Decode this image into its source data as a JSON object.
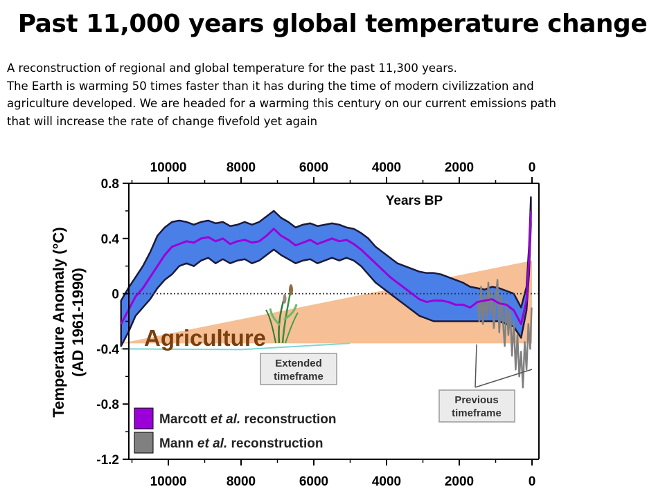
{
  "slide": {
    "title": "Past 11,000 years global temperature change",
    "body_lines": [
      "A reconstruction of regional and global temperature for the past 11,300 years.",
      "The Earth is warming 50 times faster than it has during the time of modern civilizzation and",
      "agriculture developed. We are headed for a warming this century on our current emissions path",
      "that will increase the rate of change fivefold yet again"
    ]
  },
  "chart_data": {
    "type": "line",
    "title": "",
    "ylabel": "Temperature Anomaly (°C)",
    "ylabel_sub": "(AD 1961-1990)",
    "xaxis_label": "Years BP",
    "xlim": [
      11500,
      0
    ],
    "ylim": [
      -1.2,
      0.8
    ],
    "x_ticks": [
      10000,
      8000,
      6000,
      4000,
      2000,
      0
    ],
    "x_tick_labels": [
      "10000",
      "8000",
      "6000",
      "4000",
      "2000",
      "0"
    ],
    "y_ticks": [
      0.8,
      0.4,
      0,
      -0.4,
      -0.8,
      -1.2
    ],
    "y_tick_labels": [
      "0.8",
      "0.4",
      "0",
      "-0.4",
      "-0.8",
      "-1.2"
    ],
    "reference_line_y": 0,
    "legend_position": "bottom-left",
    "series": [
      {
        "name": "Marcott et al. reconstruction",
        "name_parts": [
          "Marcott ",
          "et al.",
          " reconstruction"
        ],
        "color": "#9b00d8",
        "band_color": "#4a7fe8",
        "x": [
          11300,
          11100,
          10900,
          10700,
          10500,
          10300,
          10100,
          9900,
          9700,
          9500,
          9300,
          9100,
          8900,
          8700,
          8500,
          8300,
          8100,
          7900,
          7700,
          7500,
          7300,
          7100,
          6900,
          6700,
          6500,
          6300,
          6100,
          5900,
          5700,
          5500,
          5300,
          5100,
          4900,
          4700,
          4500,
          4300,
          4100,
          3900,
          3700,
          3500,
          3300,
          3100,
          2900,
          2700,
          2500,
          2300,
          2100,
          1900,
          1700,
          1500,
          1300,
          1100,
          900,
          700,
          500,
          300,
          150,
          80,
          30
        ],
        "values": [
          -0.22,
          -0.12,
          -0.02,
          0.04,
          0.12,
          0.2,
          0.28,
          0.34,
          0.36,
          0.38,
          0.37,
          0.4,
          0.41,
          0.38,
          0.4,
          0.36,
          0.38,
          0.39,
          0.37,
          0.38,
          0.42,
          0.47,
          0.42,
          0.39,
          0.35,
          0.37,
          0.39,
          0.36,
          0.38,
          0.4,
          0.38,
          0.39,
          0.36,
          0.32,
          0.27,
          0.22,
          0.17,
          0.12,
          0.08,
          0.04,
          0.0,
          -0.04,
          -0.06,
          -0.05,
          -0.05,
          -0.06,
          -0.08,
          -0.08,
          -0.1,
          -0.06,
          -0.05,
          -0.04,
          -0.07,
          -0.08,
          -0.12,
          -0.22,
          -0.05,
          0.25,
          0.6
        ],
        "upper": [
          -0.05,
          0.04,
          0.12,
          0.2,
          0.3,
          0.42,
          0.48,
          0.52,
          0.53,
          0.52,
          0.5,
          0.52,
          0.53,
          0.51,
          0.52,
          0.49,
          0.5,
          0.52,
          0.5,
          0.52,
          0.56,
          0.6,
          0.55,
          0.52,
          0.48,
          0.5,
          0.51,
          0.49,
          0.5,
          0.51,
          0.5,
          0.48,
          0.47,
          0.44,
          0.4,
          0.34,
          0.3,
          0.26,
          0.22,
          0.2,
          0.18,
          0.16,
          0.15,
          0.15,
          0.14,
          0.12,
          0.1,
          0.08,
          0.05,
          0.04,
          0.03,
          0.05,
          0.04,
          0.02,
          0.0,
          -0.1,
          0.05,
          0.35,
          0.7
        ],
        "lower": [
          -0.38,
          -0.28,
          -0.16,
          -0.1,
          -0.04,
          0.04,
          0.1,
          0.14,
          0.2,
          0.22,
          0.2,
          0.24,
          0.26,
          0.22,
          0.25,
          0.22,
          0.24,
          0.25,
          0.22,
          0.24,
          0.28,
          0.32,
          0.28,
          0.25,
          0.22,
          0.24,
          0.25,
          0.22,
          0.24,
          0.26,
          0.24,
          0.26,
          0.24,
          0.2,
          0.14,
          0.08,
          0.04,
          0.0,
          -0.04,
          -0.08,
          -0.12,
          -0.16,
          -0.18,
          -0.2,
          -0.2,
          -0.2,
          -0.2,
          -0.2,
          -0.2,
          -0.2,
          -0.2,
          -0.2,
          -0.2,
          -0.22,
          -0.24,
          -0.32,
          -0.12,
          0.15,
          0.5
        ]
      },
      {
        "name": "Mann et al. reconstruction",
        "name_parts": [
          "Mann ",
          "et al.",
          " reconstruction"
        ],
        "color": "#808080",
        "x": [
          1500,
          1450,
          1400,
          1350,
          1300,
          1250,
          1200,
          1150,
          1100,
          1050,
          1000,
          950,
          900,
          850,
          800,
          750,
          700,
          650,
          600,
          550,
          500,
          450,
          400,
          350,
          300,
          250,
          200,
          150,
          100,
          50,
          10
        ],
        "values": [
          -0.05,
          -0.2,
          0.05,
          -0.22,
          -0.02,
          -0.18,
          0.08,
          -0.15,
          0.02,
          -0.25,
          -0.05,
          0.1,
          -0.28,
          -0.02,
          -0.2,
          -0.38,
          -0.05,
          -0.3,
          -0.12,
          -0.45,
          -0.2,
          -0.55,
          -0.3,
          -0.6,
          -0.42,
          -0.68,
          -0.35,
          -0.55,
          -0.22,
          -0.4,
          -0.1
        ]
      }
    ],
    "annotations": {
      "agriculture_label": "Agriculture",
      "extended_timeframe": [
        "Extended",
        "timeframe"
      ],
      "previous_timeframe": [
        "Previous",
        "timeframe"
      ],
      "agriculture_wedge_color": "#f5b88a"
    }
  }
}
